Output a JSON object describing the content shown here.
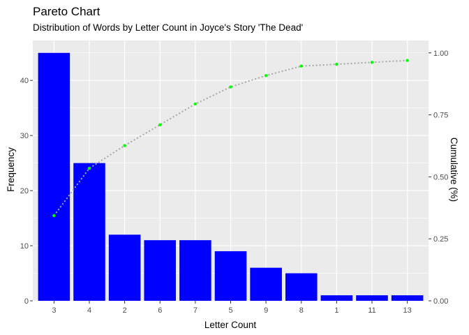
{
  "chart_data": {
    "type": "bar",
    "title": "Pareto Chart",
    "subtitle": "Distribution of Words by Letter Count in Joyce's Story 'The Dead'",
    "xlabel": "Letter Count",
    "ylabel": "Frequency",
    "y2label": "Cumulative (%)",
    "categories": [
      "3",
      "4",
      "2",
      "6",
      "7",
      "5",
      "9",
      "8",
      "1",
      "11",
      "13"
    ],
    "values": [
      45,
      25,
      12,
      11,
      11,
      9,
      6,
      5,
      1,
      1,
      1
    ],
    "cumulative": [
      0.3435,
      0.5344,
      0.626,
      0.7099,
      0.7939,
      0.8626,
      0.9084,
      0.9466,
      0.9542,
      0.9618,
      0.9695
    ],
    "ylim": [
      0,
      47.25
    ],
    "y_ticks": [
      0,
      10,
      20,
      30,
      40
    ],
    "y2lim": [
      0,
      1.05
    ],
    "y2_ticks": [
      0,
      0.25,
      0.5,
      0.75,
      1.0
    ],
    "y2_tick_labels": [
      "0.00",
      "0.25",
      "0.50",
      "0.75",
      "1.00"
    ],
    "grid": true,
    "colors": {
      "bar": "#0000ff",
      "point": "#00ff00",
      "line": "#a6a6a6",
      "panel": "#ebebeb",
      "grid": "#ffffff"
    }
  }
}
